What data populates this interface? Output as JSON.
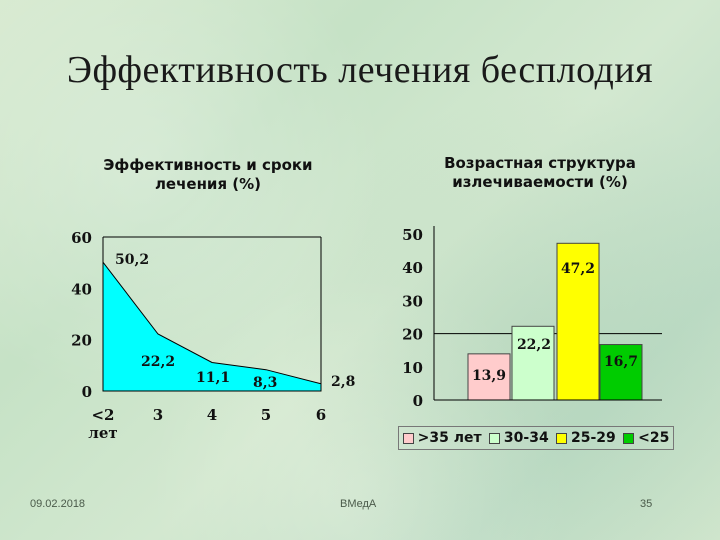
{
  "slide": {
    "title": "Эффективность лечения бесплодия",
    "date": "09.02.2018",
    "source": "ВМедА",
    "page": "35"
  },
  "colors": {
    "area": "#00ffff",
    "grey": "#c0c0c0"
  },
  "chart_data": [
    {
      "type": "area",
      "title": "Эффективность и сроки лечения (%)",
      "x": [
        "<2 лет",
        "3",
        "4",
        "5",
        "6"
      ],
      "values": [
        50.2,
        22.2,
        11.1,
        8.3,
        2.8
      ],
      "data_labels": [
        "50,2",
        "22,2",
        "11,1",
        "8,3",
        "2,8"
      ],
      "yticks": [
        "0",
        "20",
        "40",
        "60"
      ],
      "ylim": [
        0,
        60
      ],
      "xlabel": "",
      "ylabel": "",
      "grid": false
    },
    {
      "type": "bar",
      "title": "Возрастная структура излечиваемости (%)",
      "categories": [
        ">35 лет",
        "30-34",
        "25-29",
        "<25"
      ],
      "values": [
        13.9,
        22.2,
        47.2,
        16.7
      ],
      "data_labels": [
        "13,9",
        "22,2",
        "47,2",
        "16,7"
      ],
      "colors": [
        "#ffcccc",
        "#ccffcc",
        "#ffff00",
        "#00cc00"
      ],
      "label_colors": [
        "#e8a0a0",
        "#111111",
        "#111111",
        "#111111"
      ],
      "yticks": [
        "0",
        "10",
        "20",
        "30",
        "40",
        "50"
      ],
      "ylim": [
        0,
        50
      ],
      "legend_position": "bottom",
      "grid": true
    }
  ]
}
